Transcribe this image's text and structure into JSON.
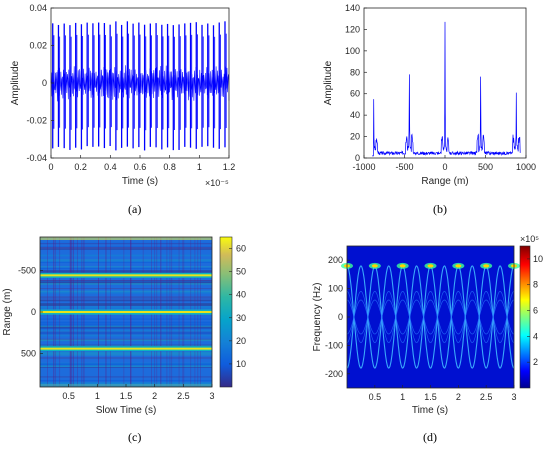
{
  "chart_data": [
    {
      "id": "a",
      "type": "line",
      "caption": "(a)",
      "xlabel": "Time (s)",
      "ylabel": "Amplitude",
      "x_exponent": "×10⁻⁵",
      "xlim": [
        0,
        1.2
      ],
      "ylim": [
        -0.04,
        0.04
      ],
      "xticks": [
        "0",
        "0.2",
        "0.4",
        "0.6",
        "0.8",
        "1",
        "1.2"
      ],
      "yticks": [
        "-0.04",
        "-0.02",
        "0",
        "0.02",
        "0.04"
      ],
      "pulse_count": 31,
      "series": [
        {
          "color": "#0000ff",
          "envelope": {
            "upper_peak": 0.033,
            "lower_peak": -0.036,
            "mid_band": 0.01
          }
        }
      ]
    },
    {
      "id": "b",
      "type": "line",
      "caption": "(b)",
      "xlabel": "Range (m)",
      "ylabel": "Amplitude",
      "xlim": [
        -1000,
        1000
      ],
      "ylim": [
        0,
        140
      ],
      "xticks": [
        "-1000",
        "-500",
        "0",
        "500",
        "1000"
      ],
      "yticks": [
        "0",
        "20",
        "40",
        "60",
        "80",
        "100",
        "120",
        "140"
      ],
      "peaks": [
        {
          "x": -880,
          "y": 55
        },
        {
          "x": -440,
          "y": 78
        },
        {
          "x": 0,
          "y": 127
        },
        {
          "x": 440,
          "y": 76
        },
        {
          "x": 880,
          "y": 61
        }
      ],
      "series": [
        {
          "color": "#0000ff"
        }
      ]
    },
    {
      "id": "c",
      "type": "heatmap",
      "caption": "(c)",
      "xlabel": "Slow Time (s)",
      "ylabel": "Range (m)",
      "xlim": [
        0,
        3
      ],
      "ylim": [
        -900,
        900
      ],
      "xticks": [
        "0.5",
        "1",
        "1.5",
        "2",
        "2.5",
        "3"
      ],
      "yticks": [
        "-500",
        "0",
        "500"
      ],
      "colorbar": {
        "min": 0,
        "max": 65,
        "ticks": [
          "10",
          "20",
          "30",
          "40",
          "50",
          "60"
        ]
      },
      "bright_rows_range_m": [
        -440,
        0,
        440
      ]
    },
    {
      "id": "d",
      "type": "heatmap",
      "caption": "(d)",
      "xlabel": "Time (s)",
      "ylabel": "Frequency (Hz)",
      "xlim": [
        0,
        3
      ],
      "ylim": [
        -250,
        250
      ],
      "xticks": [
        "0.5",
        "1",
        "1.5",
        "2",
        "2.5",
        "3"
      ],
      "yticks": [
        "200",
        "100",
        "0",
        "-100",
        "-200"
      ],
      "colorbar": {
        "min": 0,
        "max": 11,
        "exponent": "×10⁵",
        "ticks": [
          "2",
          "4",
          "6",
          "8",
          "10"
        ]
      },
      "sinusoid": {
        "amplitude_hz": 180,
        "period_s": 0.5,
        "harmonic_count": 3
      }
    }
  ]
}
